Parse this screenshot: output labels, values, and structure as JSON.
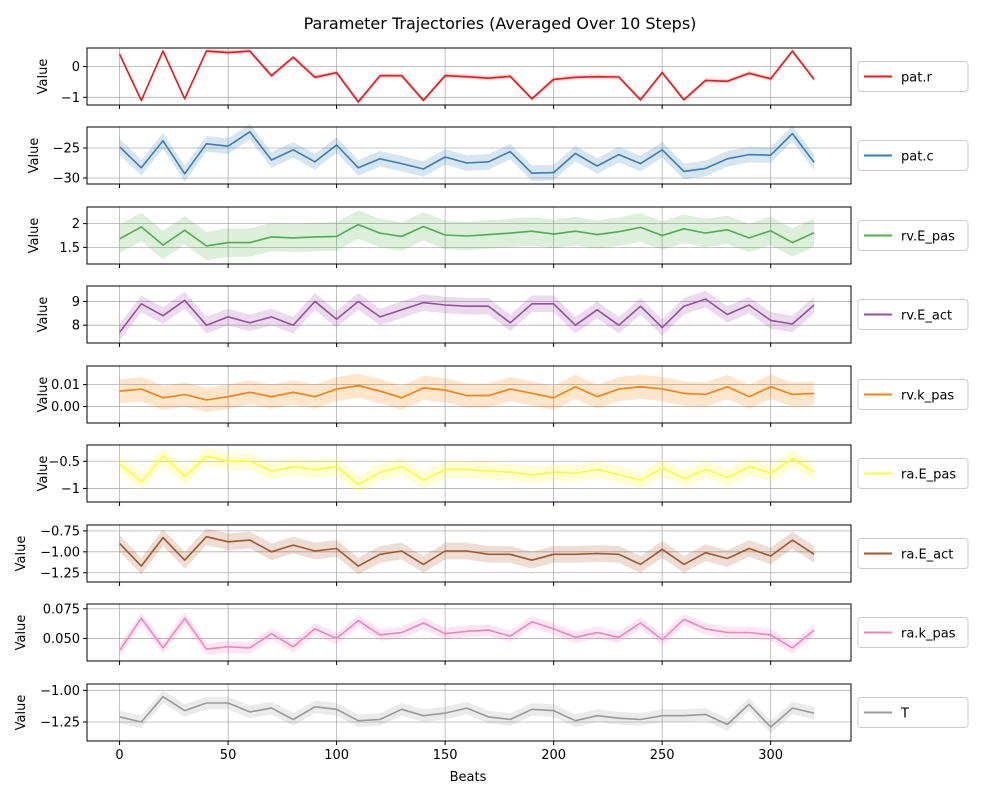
{
  "chart_data": {
    "type": "line",
    "title": "Parameter Trajectories (Averaged Over 10 Steps)",
    "xlabel": "Beats",
    "ylabel": "Value",
    "x": [
      0,
      10,
      20,
      30,
      40,
      50,
      60,
      70,
      80,
      90,
      100,
      110,
      120,
      130,
      140,
      150,
      160,
      170,
      180,
      190,
      200,
      210,
      220,
      230,
      240,
      250,
      260,
      270,
      280,
      290,
      300,
      310,
      320
    ],
    "xlim": [
      -15,
      337
    ],
    "xticks": [
      0,
      50,
      100,
      150,
      200,
      250,
      300
    ],
    "grid": true,
    "legend_position": "right",
    "panels": [
      {
        "name": "pat.r",
        "color": "#e41a1c",
        "ylim": [
          -1.25,
          0.6
        ],
        "yticks": [
          -1,
          0
        ],
        "band": 0.07,
        "values": [
          0.4,
          -1.1,
          0.5,
          -1.05,
          0.5,
          0.45,
          0.5,
          -0.3,
          0.3,
          -0.35,
          -0.2,
          -1.15,
          -0.3,
          -0.3,
          -1.1,
          -0.3,
          -0.33,
          -0.38,
          -0.32,
          -1.05,
          -0.42,
          -0.35,
          -0.33,
          -0.34,
          -1.08,
          -0.2,
          -1.08,
          -0.45,
          -0.48,
          -0.22,
          -0.4,
          0.5,
          -0.42
        ]
      },
      {
        "name": "pat.c",
        "color": "#377eb8",
        "ylim": [
          -31,
          -21.5
        ],
        "yticks": [
          -30,
          -25
        ],
        "band": 1.3,
        "values": [
          -24.8,
          -28.3,
          -23.8,
          -29.3,
          -24.3,
          -24.7,
          -22.3,
          -27,
          -25.3,
          -27.3,
          -24.5,
          -28.3,
          -26.8,
          -27.6,
          -28.5,
          -26.5,
          -27.5,
          -27.3,
          -25.6,
          -29.2,
          -29.1,
          -25.9,
          -28,
          -26.1,
          -27.6,
          -25.3,
          -28.9,
          -28.4,
          -26.8,
          -26.1,
          -26.2,
          -22.6,
          -27.4
        ]
      },
      {
        "name": "rv.E_pas",
        "color": "#4daf4a",
        "ylim": [
          1.15,
          2.35
        ],
        "yticks": [
          1.5,
          2.0
        ],
        "band": 0.3,
        "values": [
          1.68,
          1.93,
          1.55,
          1.86,
          1.53,
          1.6,
          1.6,
          1.72,
          1.7,
          1.72,
          1.73,
          1.98,
          1.8,
          1.73,
          1.94,
          1.76,
          1.74,
          1.77,
          1.8,
          1.84,
          1.78,
          1.84,
          1.77,
          1.83,
          1.92,
          1.75,
          1.89,
          1.8,
          1.87,
          1.7,
          1.85,
          1.6,
          1.81
        ]
      },
      {
        "name": "rv.E_act",
        "color": "#984ea3",
        "ylim": [
          7.25,
          9.65
        ],
        "yticks": [
          8,
          9
        ],
        "band": 0.35,
        "values": [
          7.7,
          8.9,
          8.4,
          9.05,
          8.0,
          8.35,
          8.1,
          8.35,
          8.0,
          9.0,
          8.25,
          9.0,
          8.35,
          8.65,
          8.95,
          8.85,
          8.8,
          8.8,
          8.1,
          8.9,
          8.9,
          8.0,
          8.65,
          8.0,
          8.8,
          7.9,
          8.8,
          9.1,
          8.45,
          8.85,
          8.2,
          8.05,
          8.85
        ]
      },
      {
        "name": "rv.k_pas",
        "color": "#ff7f00",
        "ylim": [
          -0.0075,
          0.0185
        ],
        "yticks": [
          0.0,
          0.01
        ],
        "tick_labels": [
          "0.00",
          "0.01"
        ],
        "band": 0.0055,
        "values": [
          0.007,
          0.008,
          0.004,
          0.0055,
          0.003,
          0.0045,
          0.0065,
          0.0045,
          0.0065,
          0.0045,
          0.008,
          0.0095,
          0.007,
          0.004,
          0.0085,
          0.0075,
          0.005,
          0.005,
          0.008,
          0.006,
          0.004,
          0.009,
          0.0045,
          0.008,
          0.009,
          0.008,
          0.006,
          0.0055,
          0.009,
          0.0045,
          0.009,
          0.0055,
          0.006
        ]
      },
      {
        "name": "ra.E_pas",
        "color": "#ffff33",
        "ylim": [
          -1.25,
          -0.2
        ],
        "yticks": [
          -1.0,
          -0.5
        ],
        "band": 0.16,
        "values": [
          -0.55,
          -0.88,
          -0.4,
          -0.78,
          -0.4,
          -0.5,
          -0.5,
          -0.68,
          -0.6,
          -0.65,
          -0.6,
          -0.93,
          -0.7,
          -0.6,
          -0.85,
          -0.65,
          -0.65,
          -0.68,
          -0.7,
          -0.75,
          -0.7,
          -0.72,
          -0.65,
          -0.75,
          -0.85,
          -0.62,
          -0.82,
          -0.65,
          -0.8,
          -0.6,
          -0.72,
          -0.45,
          -0.7
        ]
      },
      {
        "name": "ra.E_act",
        "color": "#a65628",
        "ylim": [
          -1.36,
          -0.68
        ],
        "yticks": [
          -1.25,
          -1.0,
          -0.75
        ],
        "tick_labels": [
          "−1.25",
          "−1.00",
          "−0.75"
        ],
        "band": 0.1,
        "values": [
          -0.9,
          -1.17,
          -0.83,
          -1.1,
          -0.82,
          -0.88,
          -0.86,
          -1.0,
          -0.92,
          -0.99,
          -0.96,
          -1.17,
          -1.03,
          -0.99,
          -1.15,
          -0.99,
          -0.99,
          -1.03,
          -1.03,
          -1.1,
          -1.03,
          -1.03,
          -1.02,
          -1.03,
          -1.15,
          -0.97,
          -1.15,
          -1.01,
          -1.08,
          -0.96,
          -1.05,
          -0.86,
          -1.03
        ]
      },
      {
        "name": "ra.k_pas",
        "color": "#f781bf",
        "ylim": [
          0.031,
          0.079
        ],
        "yticks": [
          0.05,
          0.075
        ],
        "tick_labels": [
          "0.050",
          "0.075"
        ],
        "band": 0.005,
        "values": [
          0.04,
          0.067,
          0.042,
          0.067,
          0.041,
          0.043,
          0.042,
          0.054,
          0.043,
          0.058,
          0.05,
          0.065,
          0.053,
          0.055,
          0.063,
          0.054,
          0.056,
          0.057,
          0.052,
          0.064,
          0.058,
          0.051,
          0.055,
          0.051,
          0.063,
          0.049,
          0.066,
          0.058,
          0.055,
          0.055,
          0.053,
          0.042,
          0.057
        ]
      },
      {
        "name": "T",
        "color": "#999999",
        "ylim": [
          -1.4,
          -0.95
        ],
        "yticks": [
          -1.25,
          -1.0
        ],
        "tick_labels": [
          "−1.25",
          "−1.00"
        ],
        "band": 0.05,
        "values": [
          -1.21,
          -1.25,
          -1.05,
          -1.16,
          -1.1,
          -1.1,
          -1.17,
          -1.14,
          -1.23,
          -1.13,
          -1.15,
          -1.24,
          -1.23,
          -1.15,
          -1.2,
          -1.18,
          -1.14,
          -1.21,
          -1.23,
          -1.15,
          -1.16,
          -1.24,
          -1.2,
          -1.22,
          -1.23,
          -1.2,
          -1.2,
          -1.19,
          -1.27,
          -1.11,
          -1.29,
          -1.14,
          -1.18
        ]
      }
    ]
  }
}
